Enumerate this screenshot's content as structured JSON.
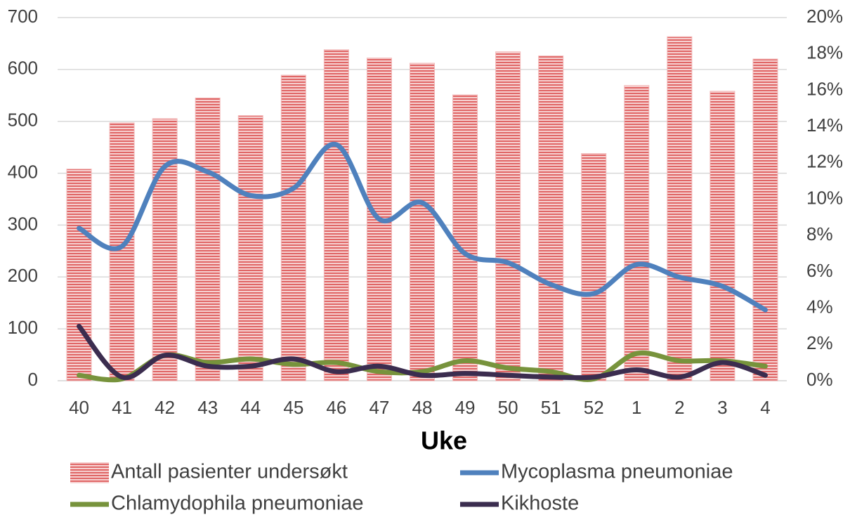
{
  "chart_data": {
    "type": "bar",
    "x_label": "Uke",
    "categories": [
      "40",
      "41",
      "42",
      "43",
      "44",
      "45",
      "46",
      "47",
      "48",
      "49",
      "50",
      "51",
      "52",
      "1",
      "2",
      "3",
      "4"
    ],
    "series": [
      {
        "name": "Antall pasienter undersøkt",
        "type": "bar",
        "axis": "y",
        "color": "#e06666",
        "values": [
          408,
          497,
          505,
          545,
          511,
          589,
          638,
          622,
          612,
          551,
          634,
          626,
          438,
          569,
          663,
          558,
          620
        ]
      },
      {
        "name": "Mycoplasma pneumoniae",
        "type": "line",
        "axis": "y2",
        "color": "#4f81bd",
        "values": [
          8.4,
          7.4,
          11.8,
          11.5,
          10.2,
          10.6,
          13.0,
          8.9,
          9.8,
          7.0,
          6.5,
          5.3,
          4.8,
          6.4,
          5.7,
          5.2,
          3.9
        ]
      },
      {
        "name": "Chlamydophila pneumoniae",
        "type": "line",
        "axis": "y2",
        "color": "#77933c",
        "values": [
          0.3,
          0.1,
          1.4,
          1.0,
          1.2,
          0.9,
          1.0,
          0.5,
          0.5,
          1.1,
          0.7,
          0.5,
          0.1,
          1.5,
          1.1,
          1.1,
          0.8
        ]
      },
      {
        "name": "Kikhoste",
        "type": "line",
        "axis": "y2",
        "color": "#3b2d4f",
        "values": [
          3.0,
          0.2,
          1.4,
          0.8,
          0.8,
          1.2,
          0.5,
          0.8,
          0.3,
          0.4,
          0.3,
          0.2,
          0.2,
          0.6,
          0.2,
          1.0,
          0.3
        ]
      }
    ],
    "ylim": [
      0,
      700
    ],
    "yticks": [
      0,
      100,
      200,
      300,
      400,
      500,
      600,
      700
    ],
    "y2lim": [
      0,
      20
    ],
    "y2ticks": [
      {
        "value": 0,
        "label": "0%"
      },
      {
        "value": 2,
        "label": "2%"
      },
      {
        "value": 4,
        "label": "4%"
      },
      {
        "value": 6,
        "label": "6%"
      },
      {
        "value": 8,
        "label": "8%"
      },
      {
        "value": 10,
        "label": "10%"
      },
      {
        "value": 12,
        "label": "12%"
      },
      {
        "value": 14,
        "label": "14%"
      },
      {
        "value": 16,
        "label": "16%"
      },
      {
        "value": 18,
        "label": "18%"
      },
      {
        "value": 20,
        "label": "20%"
      }
    ],
    "grid": true,
    "legend": "bottom"
  }
}
